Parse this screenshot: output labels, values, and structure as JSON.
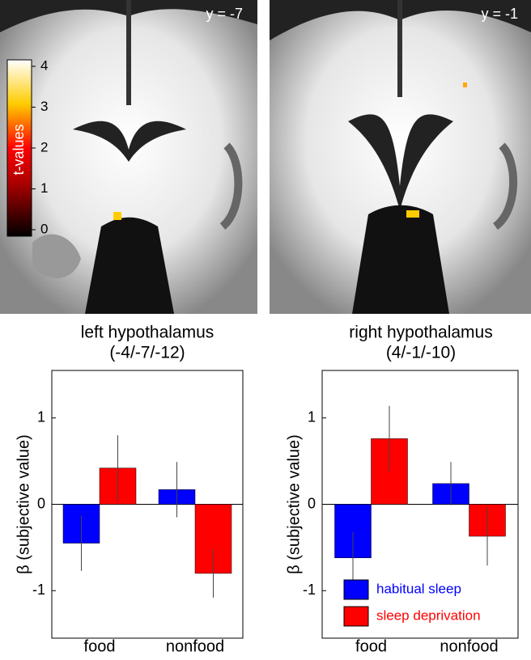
{
  "figure": {
    "panels": [
      {
        "label": "y = -7"
      },
      {
        "label": "y = -1"
      }
    ],
    "colorbar": {
      "label": "t-values",
      "ticks": [
        0,
        1,
        2,
        3,
        4
      ],
      "lim": [
        0,
        4
      ]
    }
  },
  "chart_data": [
    {
      "type": "bar",
      "title": "left hypothalamus",
      "subtitle": "(-4/-7/-12)",
      "y_label": "β (subjective value)",
      "categories": [
        "food",
        "nonfood"
      ],
      "series": [
        {
          "color": "#0000ff",
          "values": [
            -0.45,
            0.17
          ],
          "errors": [
            0.32,
            0.32
          ]
        },
        {
          "color": "#ff0000",
          "values": [
            0.42,
            -0.8
          ],
          "errors": [
            0.38,
            0.28
          ]
        }
      ],
      "ylim": [
        -1.55,
        1.55
      ],
      "yticks": [
        -1,
        0,
        1
      ],
      "legend": false
    },
    {
      "type": "bar",
      "title": "right hypothalamus",
      "subtitle": "(4/-1/-10)",
      "y_label": "β (subjective value)",
      "categories": [
        "food",
        "nonfood"
      ],
      "series": [
        {
          "name": "habitual sleep",
          "color": "#0000ff",
          "values": [
            -0.62,
            0.24
          ],
          "errors": [
            0.3,
            0.25
          ]
        },
        {
          "name": "sleep deprivation",
          "color": "#ff0000",
          "values": [
            0.76,
            -0.37
          ],
          "errors": [
            0.38,
            0.34
          ]
        }
      ],
      "ylim": [
        -1.55,
        1.55
      ],
      "yticks": [
        -1,
        0,
        1
      ],
      "legend": "lower right"
    }
  ]
}
